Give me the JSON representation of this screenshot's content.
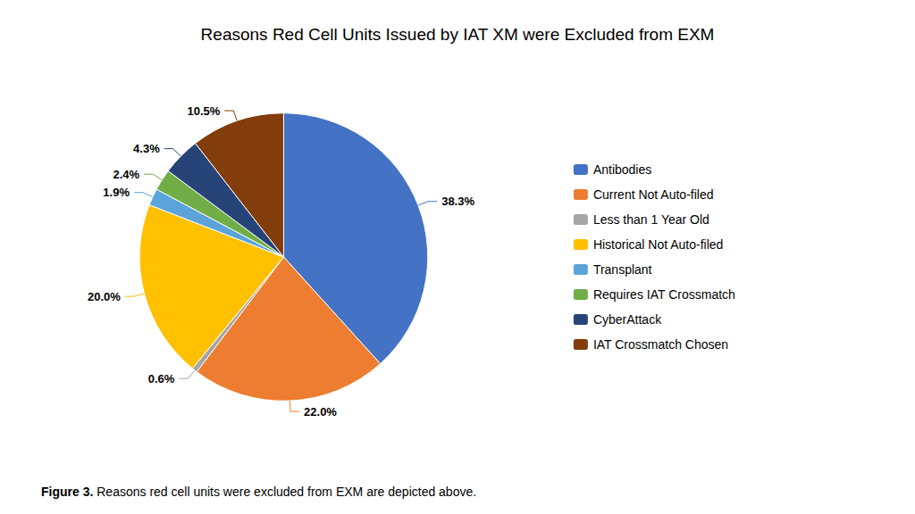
{
  "chart_data": {
    "type": "pie",
    "title": "Reasons Red Cell Units Issued by IAT XM were Excluded from EXM",
    "categories": [
      "Antibodies",
      "Current Not Auto-filed",
      "Less than 1 Year Old",
      "Historical Not Auto-filed",
      "Transplant",
      "Requires IAT Crossmatch",
      "CyberAttack",
      "IAT Crossmatch Chosen"
    ],
    "values": [
      38.3,
      22.0,
      0.6,
      20.0,
      1.9,
      2.4,
      4.3,
      10.5
    ],
    "value_labels": [
      "38.3%",
      "22.0%",
      "0.6%",
      "20.0%",
      "1.9%",
      "2.4%",
      "4.3%",
      "10.5%"
    ],
    "colors": [
      "#4472C4",
      "#ED7D31",
      "#A5A5A5",
      "#FFC000",
      "#5BA3D9",
      "#70AD47",
      "#264478",
      "#833C0B"
    ],
    "data_labels": true,
    "legend": "right",
    "annotations": [
      "Figure 3.",
      "Reasons red cell units were excluded from EXM are depicted above."
    ]
  }
}
